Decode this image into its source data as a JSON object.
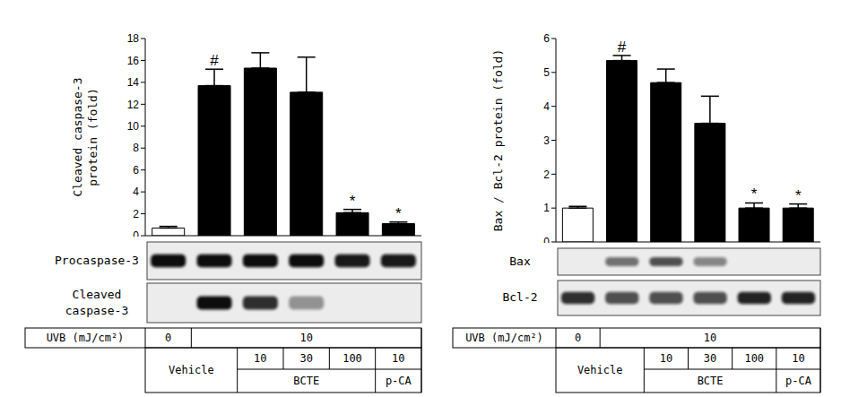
{
  "chart_data": [
    {
      "type": "bar",
      "ylabel": "Cleaved caspase-3\nprotein (fold)",
      "categories": [
        null,
        null,
        null,
        null,
        null,
        null
      ],
      "values": [
        0.7,
        13.7,
        15.3,
        13.1,
        2.1,
        1.1
      ],
      "errors": [
        0.15,
        1.5,
        1.4,
        3.2,
        0.3,
        0.15
      ],
      "significance": [
        null,
        "#",
        null,
        null,
        "*",
        "*"
      ],
      "colors": [
        "#ffffff",
        "#000000",
        "#000000",
        "#000000",
        "#000000",
        "#000000"
      ],
      "ylim": [
        0,
        18
      ],
      "yticks": [
        0,
        2,
        4,
        6,
        8,
        10,
        12,
        14,
        16,
        18
      ],
      "grid": false
    },
    {
      "type": "bar",
      "ylabel": "Bax / Bcl-2 protein (fold)",
      "categories": [
        null,
        null,
        null,
        null,
        null,
        null
      ],
      "values": [
        1.0,
        5.35,
        4.7,
        3.5,
        1.0,
        1.0
      ],
      "errors": [
        0.05,
        0.15,
        0.4,
        0.8,
        0.15,
        0.12
      ],
      "significance": [
        null,
        "#",
        null,
        null,
        "*",
        "*"
      ],
      "colors": [
        "#ffffff",
        "#000000",
        "#000000",
        "#000000",
        "#000000",
        "#000000"
      ],
      "ylim": [
        0,
        6
      ],
      "yticks": [
        0,
        1,
        2,
        3,
        4,
        5,
        6
      ],
      "grid": false
    }
  ],
  "blots": [
    [
      {
        "label": "Procaspase-3",
        "band_intensity": [
          1,
          1,
          1,
          1,
          0.95,
          0.95
        ]
      },
      {
        "label": "Cleaved\ncaspase-3",
        "band_intensity": [
          0,
          1,
          0.85,
          0.4,
          0,
          0
        ]
      }
    ],
    [
      {
        "label": "Bax",
        "band_intensity": [
          0,
          0.55,
          0.7,
          0.45,
          0,
          0
        ]
      },
      {
        "label": "Bcl-2",
        "band_intensity": [
          0.85,
          0.7,
          0.7,
          0.7,
          0.9,
          0.9
        ]
      }
    ]
  ],
  "conditions": {
    "uvb_label": "UVB (mJ/cm²)",
    "uvb": [
      {
        "text": "0",
        "span": 1
      },
      {
        "text": "10",
        "span": 5
      }
    ],
    "vehicle": {
      "text": "Vehicle",
      "span": 2
    },
    "doses": [
      "10",
      "30",
      "100",
      "10"
    ],
    "groups": [
      {
        "text": "BCTE",
        "span": 3
      },
      {
        "text": "p-CA",
        "span": 1
      }
    ]
  }
}
